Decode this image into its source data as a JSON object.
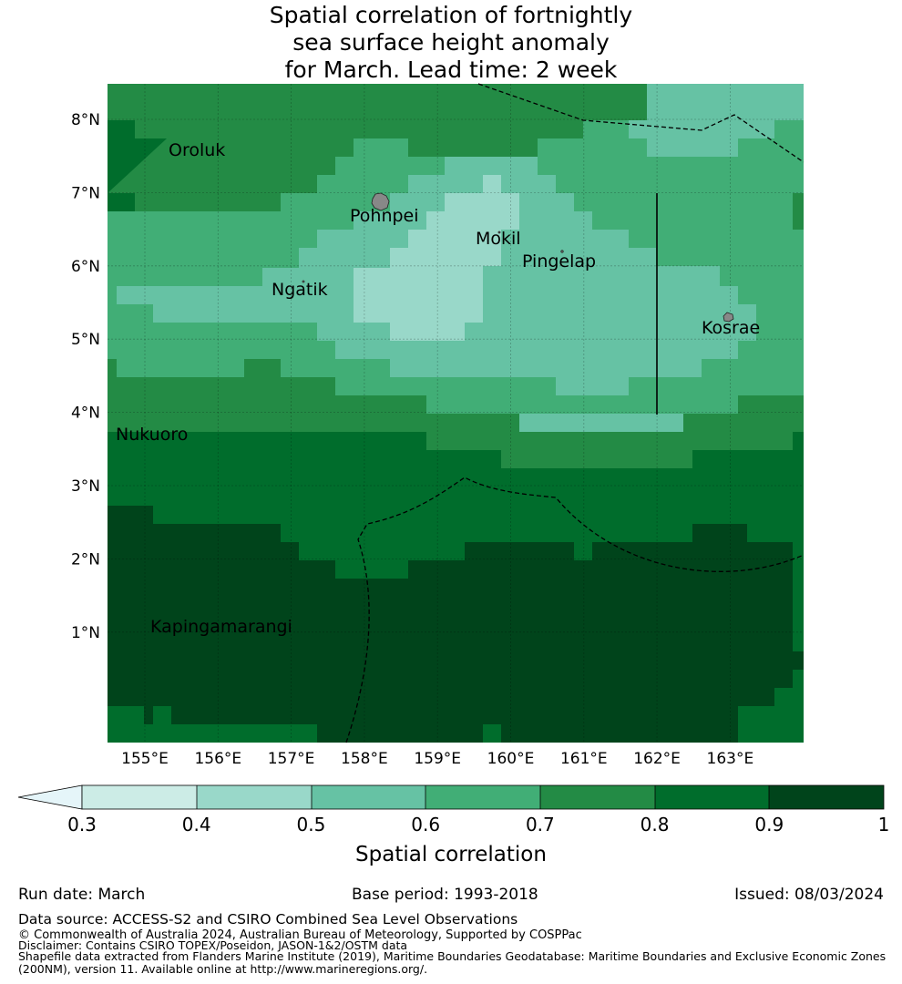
{
  "title": {
    "line1": "Spatial correlation of fortnightly",
    "line2": "sea surface height anomaly",
    "line3": "for March. Lead time: 2 week"
  },
  "map": {
    "x_ticks": [
      "155°E",
      "156°E",
      "157°E",
      "158°E",
      "159°E",
      "160°E",
      "161°E",
      "162°E",
      "163°E"
    ],
    "y_ticks": [
      "8°N",
      "7°N",
      "6°N",
      "5°N",
      "4°N",
      "3°N",
      "2°N",
      "1°N"
    ],
    "places": [
      {
        "name": "Oroluk"
      },
      {
        "name": "Pohnpei"
      },
      {
        "name": "Mokil"
      },
      {
        "name": "Pingelap"
      },
      {
        "name": "Ngatik"
      },
      {
        "name": "Kosrae"
      },
      {
        "name": "Nukuoro"
      },
      {
        "name": "Kapingamarangi"
      }
    ],
    "colors": {
      "bin_0.3_0.4": "#ccece6",
      "bin_0.4_0.5": "#99d8c9",
      "bin_0.5_0.6": "#66c2a4",
      "bin_0.6_0.7": "#41ae76",
      "bin_0.7_0.8": "#238b45",
      "bin_0.8_0.9": "#006d2c",
      "bin_0.9_1": "#00441b",
      "under": "#e5f5f9",
      "land": "#888888"
    }
  },
  "colorbar": {
    "ticks": [
      "0.3",
      "0.4",
      "0.5",
      "0.6",
      "0.7",
      "0.8",
      "0.9",
      "1"
    ],
    "label": "Spatial correlation"
  },
  "footer": {
    "run_date": "Run date: March",
    "base_period": "Base period: 1993-2018",
    "issued": "Issued: 08/03/2024",
    "data_source": "Data source: ACCESS-S2 and CSIRO Combined Sea Level Observations",
    "copyright": "© Commonwealth of Australia 2024, Australian Bureau of Meteorology, Supported by COSPPac",
    "disclaimer": "Disclaimer: Contains CSIRO TOPEX/Poseidon, JASON-1&2/OSTM data",
    "shapefile1": "Shapefile data extracted from Flanders Marine Institute (2019), Maritime Boundaries Geodatabase: Maritime Boundaries and Exclusive Economic Zones",
    "shapefile2": "(200NM), version 11. Available online at http://www.marineregions.org/."
  }
}
